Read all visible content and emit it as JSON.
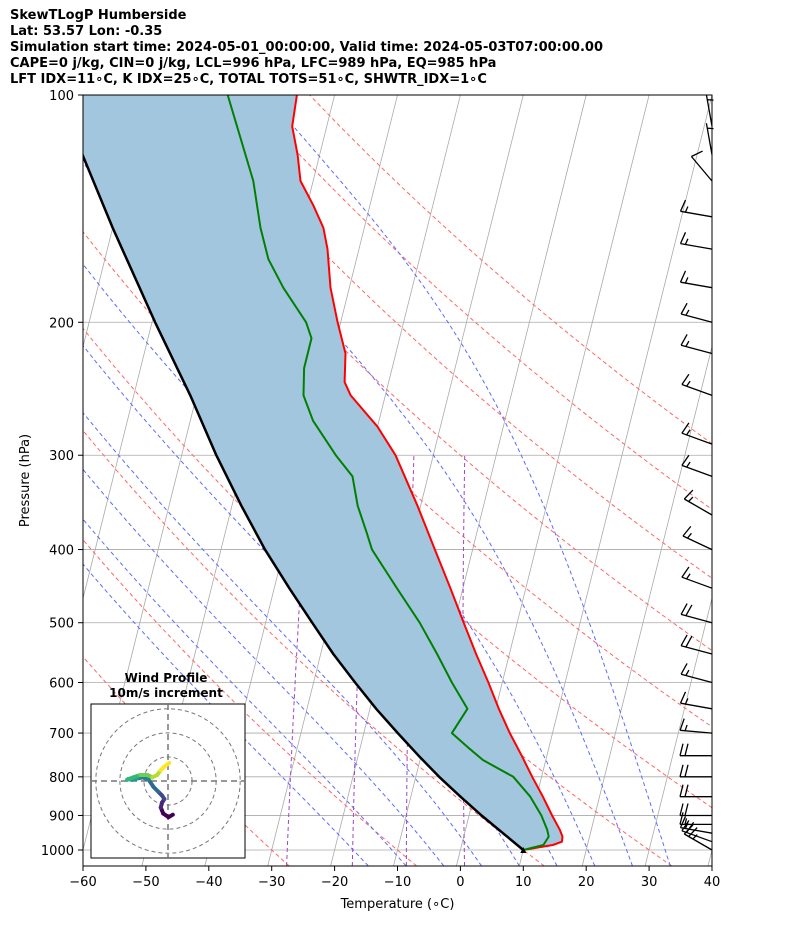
{
  "header": {
    "line1": "SkewTLogP Humberside",
    "line2": "Lat: 53.57   Lon: -0.35",
    "line3": "Simulation start time: 2024-05-01_00:00:00, Valid time: 2024-05-03T07:00:00.00",
    "line4": "CAPE=0 j/kg, CIN=0 j/kg, LCL=996 hPa, LFC=989 hPa, EQ=985 hPa",
    "line5": "LFT IDX=11∘C, K IDX=25∘C, TOTAL TOTS=51∘C, SHWTR_IDX=1∘C"
  },
  "colors": {
    "temperature": "#ff0000",
    "dewpoint": "#008000",
    "parcel": "#000000",
    "fill": "#a3c6df",
    "dry_adiabat": "#ff6666",
    "moist_adiabat": "#5a6cff",
    "mixing_ratio": "#9b47c9",
    "isotherm": "#aaaaaa"
  },
  "chart_data": {
    "type": "skewt-logp",
    "xlabel": "Temperature (∘C)",
    "ylabel": "Pressure (hPa)",
    "xlim": [
      -60,
      40
    ],
    "ylim": [
      1050,
      100
    ],
    "x_ticks": [
      -60,
      -50,
      -40,
      -30,
      -20,
      -10,
      0,
      10,
      20,
      30,
      40
    ],
    "y_ticks": [
      100,
      200,
      300,
      400,
      500,
      600,
      700,
      800,
      900,
      1000
    ],
    "temperature_profile": [
      [
        1000,
        10.0
      ],
      [
        985,
        14.5
      ],
      [
        975,
        15.8
      ],
      [
        960,
        15.7
      ],
      [
        940,
        15.0
      ],
      [
        900,
        13.2
      ],
      [
        850,
        11.0
      ],
      [
        800,
        8.5
      ],
      [
        750,
        6.0
      ],
      [
        700,
        3.2
      ],
      [
        650,
        0.5
      ],
      [
        600,
        -2.2
      ],
      [
        550,
        -5.3
      ],
      [
        500,
        -8.5
      ],
      [
        450,
        -12.0
      ],
      [
        400,
        -16.0
      ],
      [
        350,
        -20.5
      ],
      [
        300,
        -26.0
      ],
      [
        275,
        -30.0
      ],
      [
        250,
        -35.5
      ],
      [
        240,
        -37.0
      ],
      [
        220,
        -38.0
      ],
      [
        200,
        -40.5
      ],
      [
        180,
        -43.0
      ],
      [
        160,
        -45.0
      ],
      [
        150,
        -46.5
      ],
      [
        140,
        -49.0
      ],
      [
        130,
        -52.0
      ],
      [
        120,
        -53.5
      ],
      [
        110,
        -55.5
      ],
      [
        100,
        -56.0
      ]
    ],
    "dewpoint_profile": [
      [
        1000,
        10.0
      ],
      [
        985,
        13.0
      ],
      [
        960,
        13.5
      ],
      [
        940,
        13.0
      ],
      [
        900,
        11.5
      ],
      [
        850,
        9.0
      ],
      [
        800,
        5.5
      ],
      [
        760,
        0.0
      ],
      [
        730,
        -3.0
      ],
      [
        700,
        -6.0
      ],
      [
        650,
        -4.5
      ],
      [
        600,
        -8.0
      ],
      [
        550,
        -11.5
      ],
      [
        500,
        -15.5
      ],
      [
        450,
        -20.5
      ],
      [
        400,
        -26.0
      ],
      [
        380,
        -27.5
      ],
      [
        350,
        -30.0
      ],
      [
        320,
        -32.0
      ],
      [
        300,
        -35.5
      ],
      [
        270,
        -40.5
      ],
      [
        250,
        -43.0
      ],
      [
        230,
        -44.0
      ],
      [
        210,
        -44.0
      ],
      [
        200,
        -45.5
      ],
      [
        180,
        -50.5
      ],
      [
        165,
        -54.0
      ],
      [
        150,
        -56.5
      ],
      [
        130,
        -59.5
      ],
      [
        100,
        -67.0
      ]
    ],
    "parcel_profile": [
      [
        1000,
        10.0
      ],
      [
        950,
        6.1
      ],
      [
        900,
        2.0
      ],
      [
        850,
        -2.1
      ],
      [
        800,
        -6.3
      ],
      [
        750,
        -10.4
      ],
      [
        700,
        -14.6
      ],
      [
        650,
        -19.0
      ],
      [
        600,
        -23.4
      ],
      [
        550,
        -28.0
      ],
      [
        500,
        -32.6
      ],
      [
        450,
        -37.6
      ],
      [
        400,
        -43.0
      ],
      [
        350,
        -48.5
      ],
      [
        300,
        -54.5
      ],
      [
        250,
        -61.0
      ],
      [
        200,
        -69.5
      ],
      [
        150,
        -80.0
      ],
      [
        100,
        -94.0
      ]
    ],
    "dry_adiabats_theta_C": [
      -30,
      -10,
      10,
      30,
      50,
      70,
      90,
      110,
      130,
      150
    ],
    "moist_adiabats_surface_C": [
      -14,
      -8,
      -2,
      4,
      10,
      16,
      22,
      28,
      34
    ],
    "mixing_ratio_lines_gkg": [
      0.4,
      1,
      2,
      4
    ],
    "wind_barbs": [
      {
        "p": 1000,
        "spd": 25,
        "dir": 300
      },
      {
        "p": 975,
        "spd": 20,
        "dir": 290
      },
      {
        "p": 950,
        "spd": 15,
        "dir": 280
      },
      {
        "p": 925,
        "spd": 15,
        "dir": 270
      },
      {
        "p": 900,
        "spd": 20,
        "dir": 270
      },
      {
        "p": 850,
        "spd": 20,
        "dir": 270
      },
      {
        "p": 800,
        "spd": 20,
        "dir": 270
      },
      {
        "p": 750,
        "spd": 20,
        "dir": 270
      },
      {
        "p": 700,
        "spd": 15,
        "dir": 275
      },
      {
        "p": 650,
        "spd": 15,
        "dir": 280
      },
      {
        "p": 600,
        "spd": 15,
        "dir": 285
      },
      {
        "p": 550,
        "spd": 20,
        "dir": 285
      },
      {
        "p": 500,
        "spd": 20,
        "dir": 285
      },
      {
        "p": 450,
        "spd": 15,
        "dir": 290
      },
      {
        "p": 400,
        "spd": 15,
        "dir": 295
      },
      {
        "p": 360,
        "spd": 15,
        "dir": 300
      },
      {
        "p": 320,
        "spd": 15,
        "dir": 290
      },
      {
        "p": 290,
        "spd": 15,
        "dir": 290
      },
      {
        "p": 250,
        "spd": 15,
        "dir": 290
      },
      {
        "p": 220,
        "spd": 15,
        "dir": 285
      },
      {
        "p": 200,
        "spd": 15,
        "dir": 285
      },
      {
        "p": 180,
        "spd": 15,
        "dir": 280
      },
      {
        "p": 160,
        "spd": 15,
        "dir": 280
      },
      {
        "p": 145,
        "spd": 15,
        "dir": 280
      },
      {
        "p": 130,
        "spd": 10,
        "dir": 320
      },
      {
        "p": 120,
        "spd": 5,
        "dir": 350
      },
      {
        "p": 110,
        "spd": 5,
        "dir": 350
      }
    ],
    "hodograph": {
      "title": "Wind Profile",
      "subtitle": "10m/s increment",
      "rings_ms": [
        10,
        20,
        30
      ],
      "points_uv": [
        [
          2.0,
          -14.0
        ],
        [
          0.2,
          -15.0
        ],
        [
          -2.0,
          -13.5
        ],
        [
          -3.0,
          -11.0
        ],
        [
          -2.5,
          -9.0
        ],
        [
          -1.5,
          -7.5
        ],
        [
          -2.5,
          -6.0
        ],
        [
          -4.0,
          -4.5
        ],
        [
          -6.0,
          -2.5
        ],
        [
          -8.0,
          0.5
        ],
        [
          -10.5,
          1.5
        ],
        [
          -13.0,
          1.0
        ],
        [
          -15.0,
          0.5
        ],
        [
          -16.5,
          0.8
        ],
        [
          -17.0,
          0.5
        ],
        [
          -14.5,
          1.5
        ],
        [
          -11.5,
          2.5
        ],
        [
          -8.5,
          2.5
        ],
        [
          -6.5,
          1.5
        ],
        [
          -4.5,
          2.5
        ],
        [
          -3.0,
          4.5
        ],
        [
          -1.5,
          6.0
        ],
        [
          0.5,
          7.5
        ]
      ]
    }
  }
}
